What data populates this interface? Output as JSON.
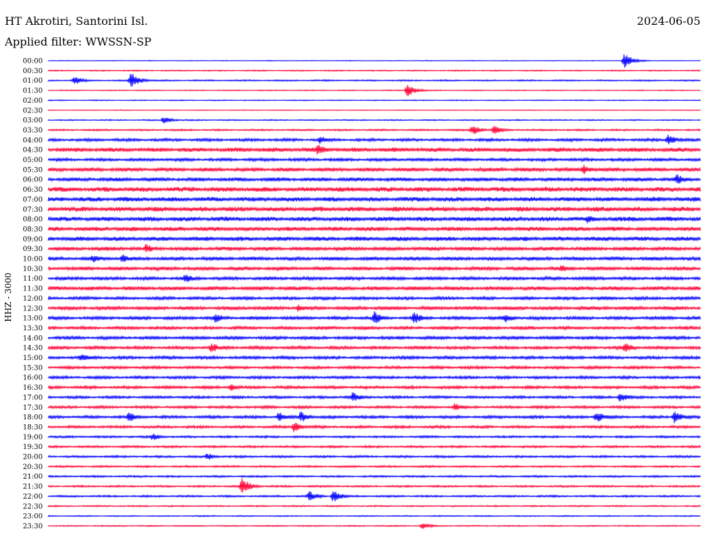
{
  "header": {
    "station": "HT Akrotiri, Santorini Isl.",
    "filter": "Applied filter: WWSSN-SP",
    "date": "2024-06-05"
  },
  "side_label": "HHZ - 3000",
  "colors": {
    "even_trace": "#0000ff",
    "odd_trace": "#ff0033"
  },
  "chart_data": {
    "type": "line",
    "title": "",
    "rows": [
      "00:00",
      "00:30",
      "01:00",
      "01:30",
      "02:00",
      "02:30",
      "03:00",
      "03:30",
      "04:00",
      "04:30",
      "05:00",
      "05:30",
      "06:00",
      "06:30",
      "07:00",
      "07:30",
      "08:00",
      "08:30",
      "09:00",
      "09:30",
      "10:00",
      "10:30",
      "11:00",
      "11:30",
      "12:00",
      "12:30",
      "13:00",
      "13:30",
      "14:00",
      "14:30",
      "15:00",
      "15:30",
      "16:00",
      "16:30",
      "17:00",
      "17:30",
      "18:00",
      "18:30",
      "19:00",
      "19:30",
      "20:00",
      "20:30",
      "21:00",
      "21:30",
      "22:00",
      "22:30",
      "23:00",
      "23:30"
    ],
    "noise_level": [
      0.3,
      0.5,
      0.6,
      0.4,
      0.4,
      0.3,
      0.5,
      0.7,
      1.2,
      1.8,
      1.3,
      1.6,
      1.6,
      2.0,
      1.9,
      2.0,
      1.9,
      1.8,
      1.8,
      1.6,
      1.5,
      1.5,
      1.4,
      1.6,
      1.3,
      1.5,
      1.4,
      1.3,
      1.4,
      1.3,
      1.3,
      1.2,
      1.2,
      1.2,
      1.1,
      1.1,
      1.2,
      1.1,
      0.9,
      0.9,
      0.9,
      0.8,
      0.8,
      0.8,
      0.8,
      0.6,
      0.5,
      0.5
    ],
    "events": [
      {
        "row": "00:00",
        "minute": 26.5,
        "amplitude": 11
      },
      {
        "row": "01:00",
        "minute": 1.2,
        "amplitude": 7
      },
      {
        "row": "01:00",
        "minute": 3.8,
        "amplitude": 12
      },
      {
        "row": "01:30",
        "minute": 16.5,
        "amplitude": 10
      },
      {
        "row": "03:00",
        "minute": 5.3,
        "amplitude": 6
      },
      {
        "row": "03:30",
        "minute": 19.5,
        "amplitude": 8
      },
      {
        "row": "03:30",
        "minute": 20.5,
        "amplitude": 7
      },
      {
        "row": "04:00",
        "minute": 12.5,
        "amplitude": 7
      },
      {
        "row": "04:00",
        "minute": 28.5,
        "amplitude": 9
      },
      {
        "row": "04:30",
        "minute": 12.4,
        "amplitude": 9
      },
      {
        "row": "05:30",
        "minute": 24.6,
        "amplitude": 8
      },
      {
        "row": "06:00",
        "minute": 28.9,
        "amplitude": 9
      },
      {
        "row": "08:00",
        "minute": 24.8,
        "amplitude": 7
      },
      {
        "row": "09:30",
        "minute": 4.5,
        "amplitude": 8
      },
      {
        "row": "10:00",
        "minute": 2.0,
        "amplitude": 7
      },
      {
        "row": "10:00",
        "minute": 3.4,
        "amplitude": 7
      },
      {
        "row": "10:30",
        "minute": 23.6,
        "amplitude": 6
      },
      {
        "row": "11:00",
        "minute": 6.3,
        "amplitude": 8
      },
      {
        "row": "12:30",
        "minute": 11.5,
        "amplitude": 6
      },
      {
        "row": "13:00",
        "minute": 7.7,
        "amplitude": 8
      },
      {
        "row": "13:00",
        "minute": 15.0,
        "amplitude": 10
      },
      {
        "row": "13:00",
        "minute": 16.8,
        "amplitude": 10
      },
      {
        "row": "13:00",
        "minute": 21.0,
        "amplitude": 8
      },
      {
        "row": "14:30",
        "minute": 7.5,
        "amplitude": 8
      },
      {
        "row": "14:30",
        "minute": 26.5,
        "amplitude": 9
      },
      {
        "row": "15:00",
        "minute": 1.5,
        "amplitude": 7
      },
      {
        "row": "16:30",
        "minute": 8.4,
        "amplitude": 6
      },
      {
        "row": "17:00",
        "minute": 14.0,
        "amplitude": 8
      },
      {
        "row": "17:00",
        "minute": 26.3,
        "amplitude": 8
      },
      {
        "row": "17:30",
        "minute": 18.7,
        "amplitude": 7
      },
      {
        "row": "18:00",
        "minute": 3.7,
        "amplitude": 8
      },
      {
        "row": "18:00",
        "minute": 10.6,
        "amplitude": 8
      },
      {
        "row": "18:00",
        "minute": 11.6,
        "amplitude": 9
      },
      {
        "row": "18:00",
        "minute": 25.2,
        "amplitude": 9
      },
      {
        "row": "18:00",
        "minute": 28.8,
        "amplitude": 10
      },
      {
        "row": "18:30",
        "minute": 11.3,
        "amplitude": 8
      },
      {
        "row": "19:00",
        "minute": 4.8,
        "amplitude": 6
      },
      {
        "row": "20:00",
        "minute": 7.3,
        "amplitude": 6
      },
      {
        "row": "21:30",
        "minute": 8.9,
        "amplitude": 13
      },
      {
        "row": "22:00",
        "minute": 12.0,
        "amplitude": 8
      },
      {
        "row": "22:00",
        "minute": 13.1,
        "amplitude": 10
      },
      {
        "row": "23:30",
        "minute": 17.2,
        "amplitude": 6
      }
    ],
    "xlabel": "",
    "ylabel": "HHZ - 3000",
    "grid": false
  }
}
